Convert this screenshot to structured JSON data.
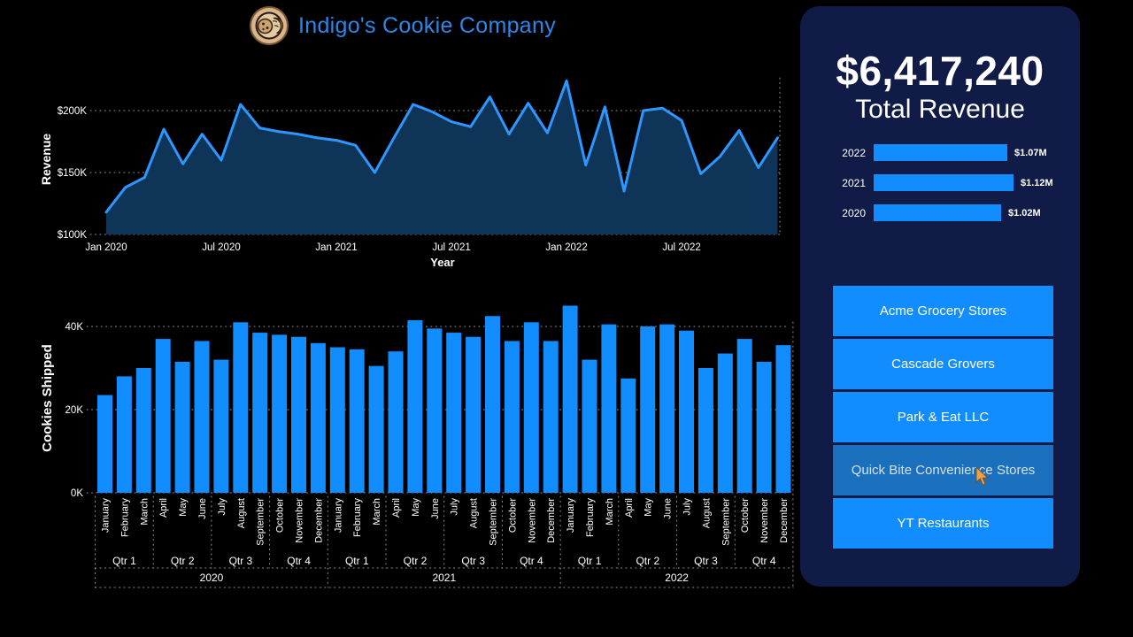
{
  "header": {
    "title": "Indigo's Cookie Company",
    "logo": "cookie-coin-emblem"
  },
  "colors": {
    "accent_blue": "#118DFF",
    "line_blue": "#2E96FF",
    "area_fill": "#0E3557",
    "panel_navy": "#101B47",
    "title_blue": "#2C87E8",
    "hover_button": "#1B70BE",
    "grid_dot": "rgba(255,255,255,0.55)",
    "cursor_orange": "#E8A24D"
  },
  "panel": {
    "kpi_value": "$6,417,240",
    "kpi_label": "Total Revenue",
    "customers": [
      {
        "label": "Acme Grocery Stores",
        "state": "default"
      },
      {
        "label": "Cascade Grovers",
        "state": "default"
      },
      {
        "label": "Park & Eat LLC",
        "state": "default"
      },
      {
        "label": "Quick Bite Convenience Stores",
        "state": "hovered"
      },
      {
        "label": "YT Restaurants",
        "state": "default"
      }
    ]
  },
  "chart_data": [
    {
      "type": "area",
      "name": "revenue-by-month",
      "title": "",
      "xlabel": "Year",
      "ylabel": "Revenue",
      "grid": "dotted",
      "ylim": [
        100,
        232
      ],
      "yticks": [
        {
          "label": "$100K",
          "value": 100
        },
        {
          "label": "$150K",
          "value": 150
        },
        {
          "label": "$200K",
          "value": 200
        }
      ],
      "xticks": [
        {
          "label": "Jan 2020",
          "index": 0
        },
        {
          "label": "Jul 2020",
          "index": 6
        },
        {
          "label": "Jan 2021",
          "index": 12
        },
        {
          "label": "Jul 2021",
          "index": 18
        },
        {
          "label": "Jan 2022",
          "index": 24
        },
        {
          "label": "Jul 2022",
          "index": 30
        }
      ],
      "x": [
        "Jan 2020",
        "Feb 2020",
        "Mar 2020",
        "Apr 2020",
        "May 2020",
        "Jun 2020",
        "Jul 2020",
        "Aug 2020",
        "Sep 2020",
        "Oct 2020",
        "Nov 2020",
        "Dec 2020",
        "Jan 2021",
        "Feb 2021",
        "Mar 2021",
        "Apr 2021",
        "May 2021",
        "Jun 2021",
        "Jul 2021",
        "Aug 2021",
        "Sep 2021",
        "Oct 2021",
        "Nov 2021",
        "Dec 2021",
        "Jan 2022",
        "Feb 2022",
        "Mar 2022",
        "Apr 2022",
        "May 2022",
        "Jun 2022",
        "Jul 2022",
        "Aug 2022",
        "Sep 2022",
        "Oct 2022",
        "Nov 2022",
        "Dec 2022"
      ],
      "values_k": [
        118,
        138,
        146,
        185,
        157,
        181,
        160,
        205,
        186,
        183,
        181,
        178,
        176,
        172,
        150,
        178,
        205,
        199,
        191,
        187,
        211,
        181,
        206,
        182,
        224,
        156,
        203,
        135,
        200,
        202,
        192,
        149,
        163,
        184,
        154,
        178
      ]
    },
    {
      "type": "bar",
      "name": "cookies-shipped-by-month",
      "title": "",
      "xlabel": "",
      "ylabel": "Cookies Shipped",
      "grid": "dotted",
      "ylim": [
        0,
        46
      ],
      "yticks": [
        {
          "label": "0K",
          "value": 0
        },
        {
          "label": "20K",
          "value": 20
        },
        {
          "label": "40K",
          "value": 40
        }
      ],
      "month_names": [
        "January",
        "February",
        "March",
        "April",
        "May",
        "June",
        "July",
        "August",
        "September",
        "October",
        "November",
        "December"
      ],
      "quarters": [
        "Qtr 1",
        "Qtr 2",
        "Qtr 3",
        "Qtr 4"
      ],
      "years": [
        "2020",
        "2021",
        "2022"
      ],
      "values_k": [
        23.5,
        28,
        30,
        37,
        31.5,
        36.5,
        32,
        41,
        38.5,
        38,
        37.5,
        36,
        35,
        34.5,
        30.5,
        34,
        41.5,
        39.5,
        38.5,
        37.5,
        42.5,
        36.5,
        41,
        36.5,
        45,
        32,
        40.5,
        27.5,
        40,
        40.5,
        39,
        30,
        33.5,
        37,
        31.5,
        35.5
      ]
    },
    {
      "type": "bar",
      "orientation": "horizontal",
      "name": "revenue-by-year",
      "categories": [
        "2022",
        "2021",
        "2020"
      ],
      "values_m": [
        1.07,
        1.12,
        1.02
      ],
      "value_labels": [
        "$1.07M",
        "$1.12M",
        "$1.02M"
      ],
      "xmax": 1.12
    }
  ]
}
